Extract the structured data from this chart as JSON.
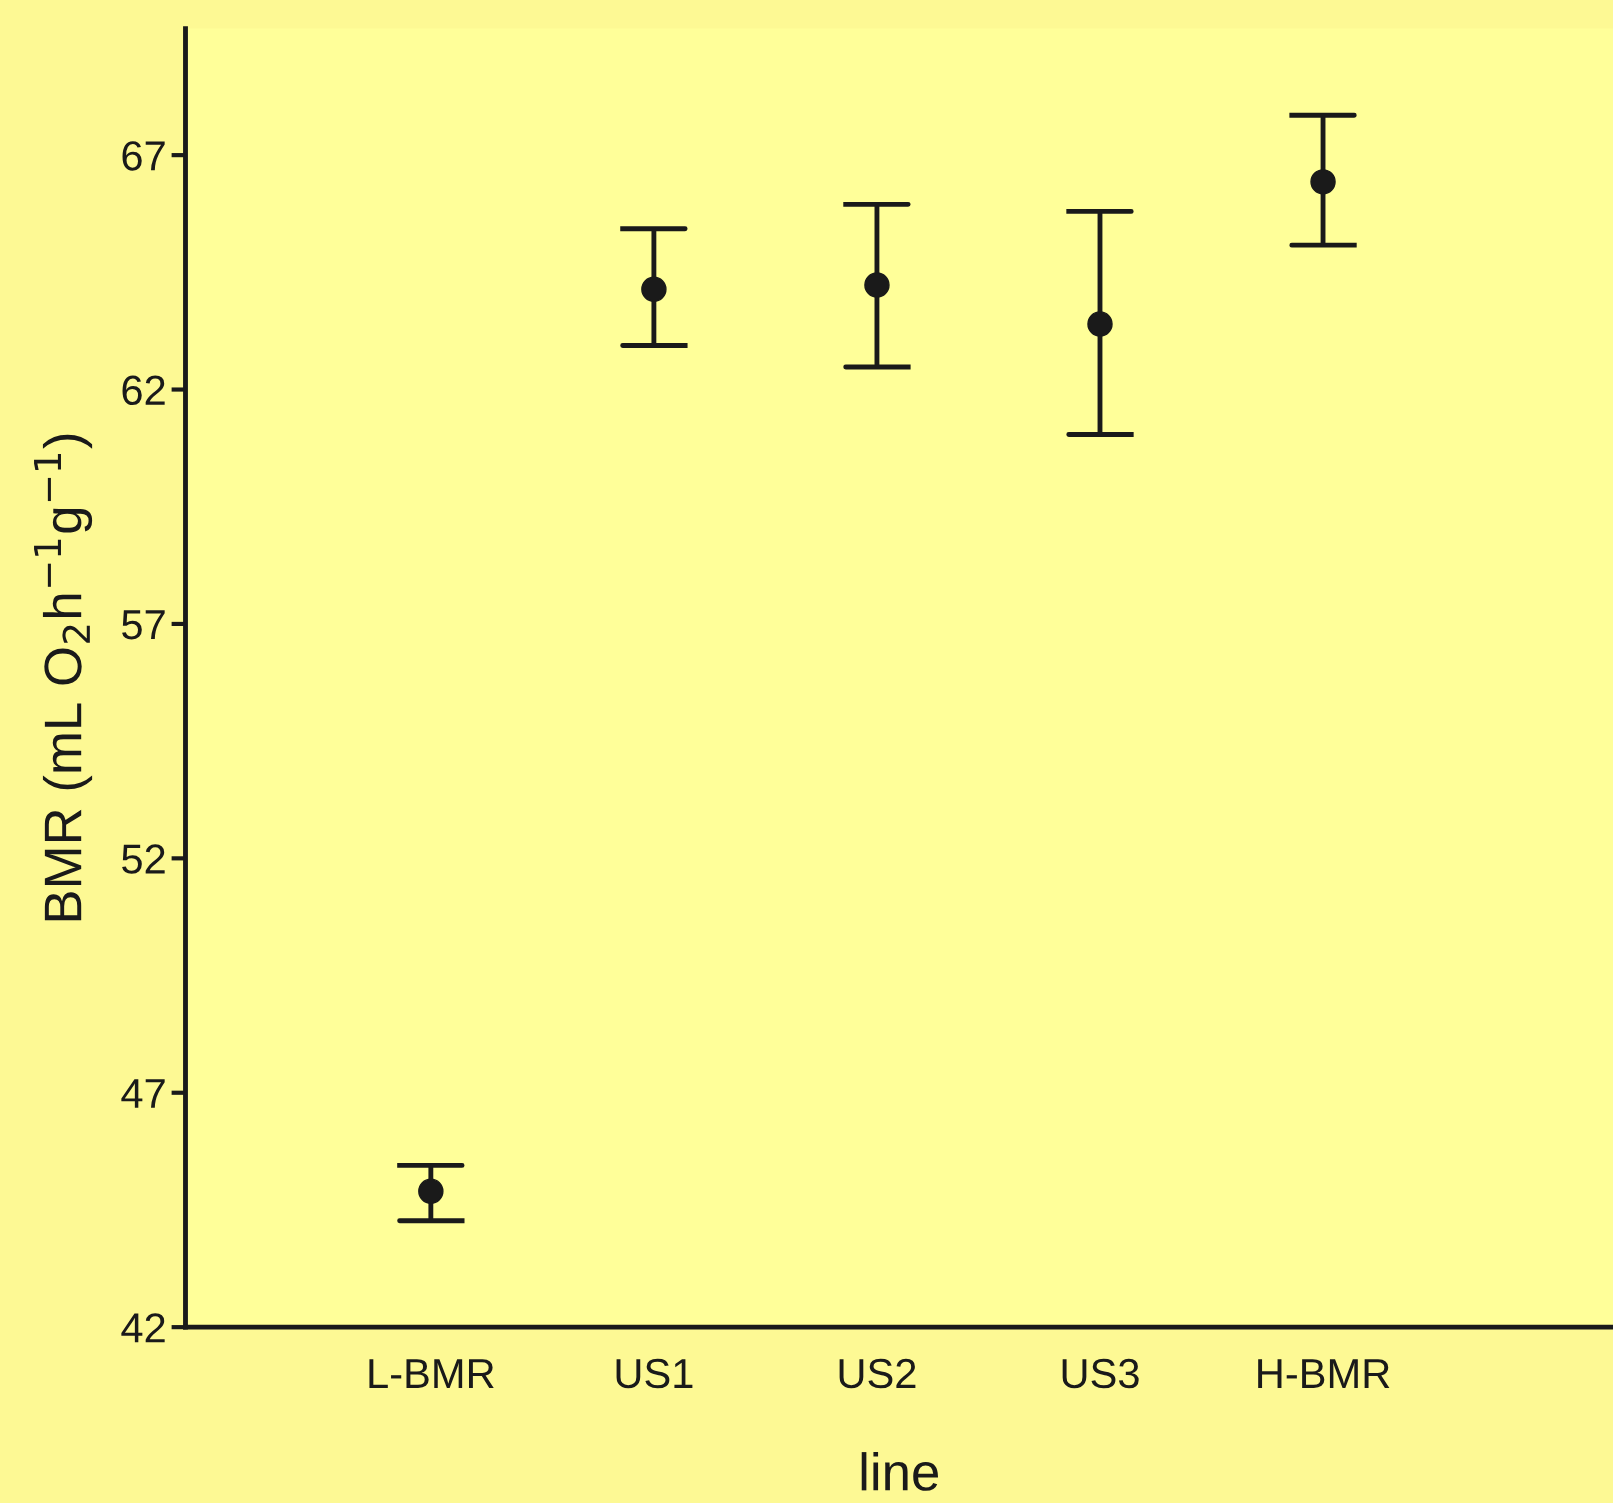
{
  "chart_data": {
    "type": "scatter",
    "xlabel": "line",
    "ylabel": "BMR (mL O$_{2}$h$^{−1}$g$^{−1}$)",
    "categories": [
      "L-BMR",
      "US1",
      "US2",
      "US3",
      "H-BMR"
    ],
    "series": [
      {
        "color": "#1a1a1a",
        "values": [
          44.9,
          64.14,
          64.23,
          63.4,
          66.43
        ],
        "errors": [
          [
            44.27,
            45.45
          ],
          [
            62.94,
            65.43
          ],
          [
            62.48,
            65.95
          ],
          [
            61.04,
            65.8
          ],
          [
            65.08,
            67.85
          ]
        ]
      }
    ],
    "ylim": [
      42,
      69.7
    ],
    "yticks": [
      42,
      47,
      52,
      57,
      62,
      67
    ],
    "marker": "circle",
    "grid": false,
    "legend": false
  }
}
